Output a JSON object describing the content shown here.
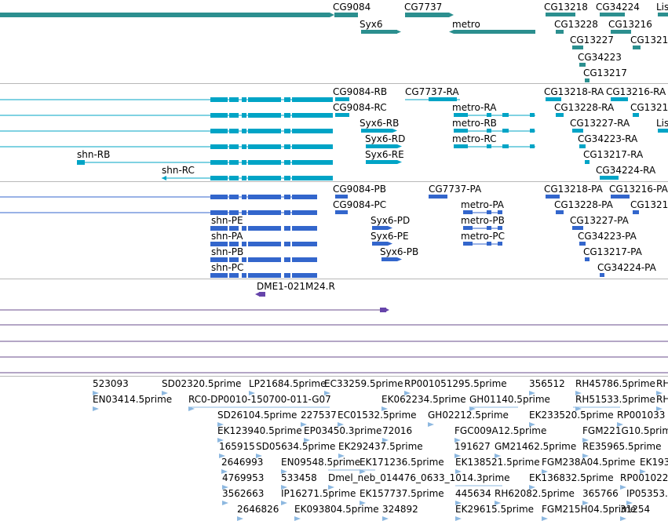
{
  "colors": {
    "gene": "#2b8f8f",
    "transcript_rna": "#00a4c6",
    "transcript_protein": "#3366cc",
    "match": "#6644aa",
    "line_track": "#6a4c8c",
    "est": "#8db8e0",
    "separator": "#b8b8b8"
  },
  "tracks": {
    "genes": {
      "labels": [
        "CG9084",
        "CG7737",
        "CG13218",
        "CG34224",
        "Lis",
        "Syx6",
        "metro",
        "CG13228",
        "CG13216",
        "CG13227",
        "CG1321",
        "CG34223",
        "CG13217"
      ]
    },
    "mrna": {
      "labels": [
        "CG9084-RB",
        "CG7737-RA",
        "CG13218-RA",
        "CG13216-RA",
        "CG9084-RC",
        "metro-RA",
        "CG13228-RA",
        "CG1321",
        "Syx6-RB",
        "metro-RB",
        "CG13227-RA",
        "Lis",
        "Syx6-RD",
        "metro-RC",
        "CG34223-RA",
        "shn-RB",
        "Syx6-RE",
        "CG13217-RA",
        "shn-RC",
        "CG34224-RA"
      ]
    },
    "protein": {
      "labels": [
        "CG9084-PB",
        "CG7737-PA",
        "CG13218-PA",
        "CG13216-PA",
        "CG9084-PC",
        "metro-PA",
        "CG13228-PA",
        "CG1321",
        "shn-PE",
        "Syx6-PD",
        "metro-PB",
        "CG13227-PA",
        "shn-PA",
        "Syx6-PE",
        "metro-PC",
        "CG34223-PA",
        "shn-PB",
        "Syx6-PB",
        "CG13217-PA",
        "shn-PC",
        "CG34224-PA"
      ]
    },
    "matches": {
      "labels": [
        "DME1-021M24.R"
      ]
    },
    "ests": {
      "labels": [
        "523093",
        "SD02320.5prime",
        "LP21684.5prime",
        "EC33259.5prime",
        "RP001051295.5prime",
        "356512",
        "RH45786.5prime",
        "RH",
        "EN03414.5prime",
        "RC0-DP0010-150700-011-G07",
        "EK062234.5prime",
        "GH01140.5prime",
        "RH51533.5prime",
        "RH",
        "SD26104.5prime",
        "227537",
        "EC01532.5prime",
        "GH02212.5prime",
        "EK233520.5prime",
        "RP001033",
        "EK123940.5prime",
        "EP03450.3prime",
        "72016",
        "FGC009A12.5prime",
        "FGM221G10.5prime",
        "165915",
        "SD05634.5prime",
        "EK292437.5prime",
        "191627",
        "GM21462.5prime",
        "RE35965.5prime",
        "2646993",
        "EN09548.5prime",
        "EK171236.5prime",
        "EK138521.5prime",
        "FGM238A04.5prime",
        "EK193",
        "4769953",
        "533458",
        "Dmel_neb_014476_0633_1014.3prime",
        "EK136832.5prime",
        "RP001022",
        "3562663",
        "IP16271.5prime",
        "EK157737.5prime",
        "445634",
        "RH62082.5prime",
        "365766",
        "IP05353.",
        "2646826",
        "EK093804.5prime",
        "324892",
        "EK29615.5prime",
        "FGM215H04.5prime",
        "31254"
      ]
    }
  }
}
